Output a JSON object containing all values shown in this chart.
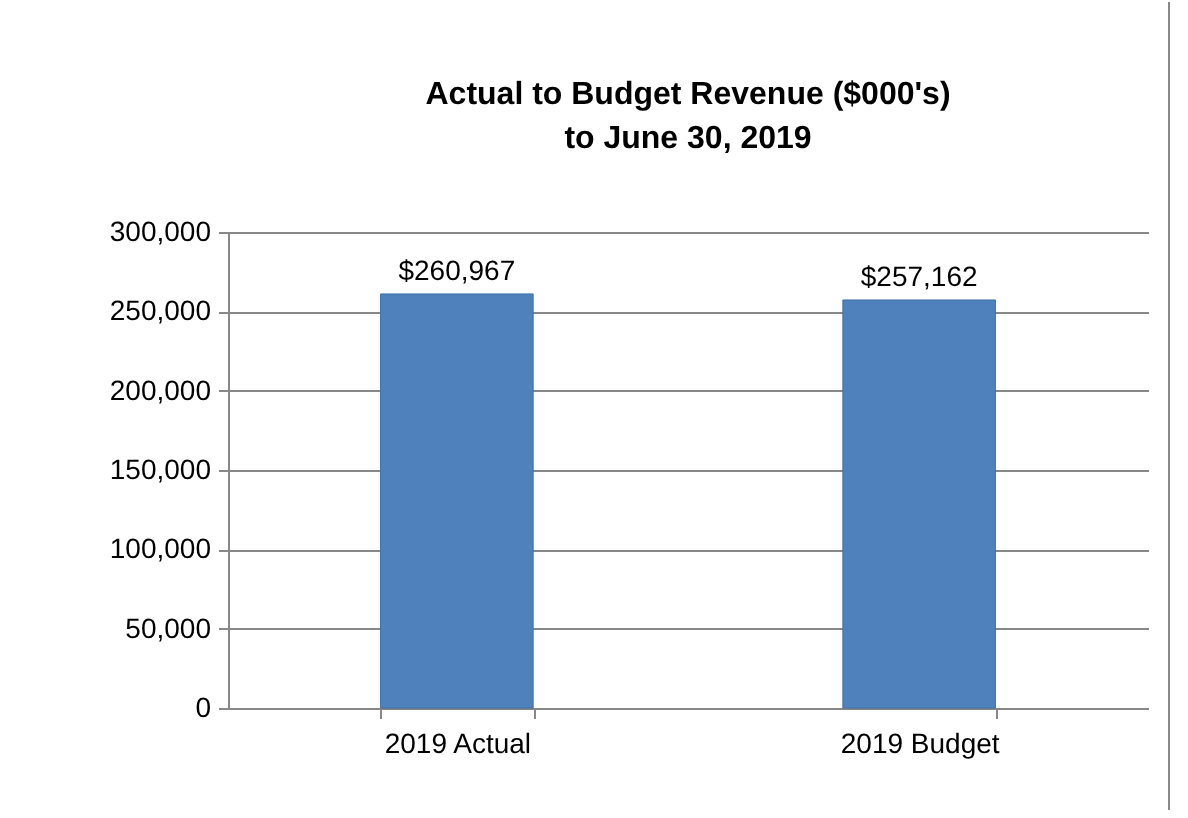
{
  "chart_data": {
    "type": "bar",
    "title": "Actual to Budget Revenue ($000's)",
    "subtitle": "to June 30, 2019",
    "categories": [
      "2019 Actual",
      "2019 Budget"
    ],
    "values": [
      260967,
      257162
    ],
    "value_labels": [
      "$260,967",
      "$257,162"
    ],
    "color": "#4f81bd",
    "ylim": [
      0,
      300000
    ],
    "yticks": [
      {
        "value": 0,
        "label": "0"
      },
      {
        "value": 50000,
        "label": "50,000"
      },
      {
        "value": 100000,
        "label": "100,000"
      },
      {
        "value": 150000,
        "label": "150,000"
      },
      {
        "value": 200000,
        "label": "200,000"
      },
      {
        "value": 250000,
        "label": "250,000"
      },
      {
        "value": 300000,
        "label": "300,000"
      }
    ],
    "grid": "y"
  }
}
